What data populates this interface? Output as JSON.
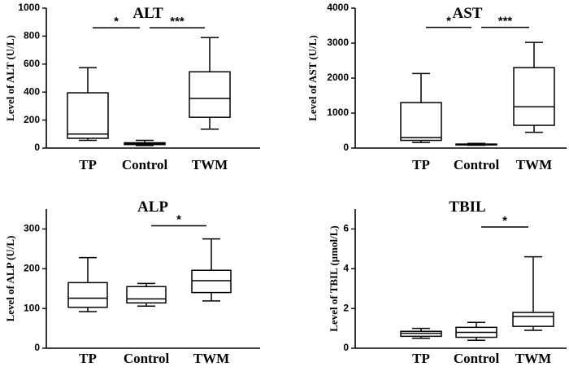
{
  "chart_data": [
    {
      "type": "box",
      "title": "ALT",
      "ylabel": "Level of ALT (U/L)",
      "ylim": [
        0,
        1000
      ],
      "yticks": [
        "0",
        "200",
        "400",
        "600",
        "800",
        "1000"
      ],
      "categories": [
        "TP",
        "Control",
        "TWM"
      ],
      "boxes": [
        {
          "min": 55,
          "q1": 70,
          "median": 100,
          "q3": 395,
          "max": 575
        },
        {
          "min": 18,
          "q1": 25,
          "median": 32,
          "q3": 38,
          "max": 55
        },
        {
          "min": 135,
          "q1": 220,
          "median": 355,
          "q3": 545,
          "max": 790
        }
      ],
      "significance": [
        {
          "from": 0,
          "to": 1,
          "label": "*",
          "y": 860
        },
        {
          "from": 1,
          "to": 2,
          "label": "***",
          "y": 860
        }
      ]
    },
    {
      "type": "box",
      "title": "AST",
      "ylabel": "Level of AST (U/L)",
      "ylim": [
        0,
        4000
      ],
      "yticks": [
        "0",
        "1000",
        "2000",
        "3000",
        "4000"
      ],
      "categories": [
        "TP",
        "Control",
        "TWM"
      ],
      "boxes": [
        {
          "min": 160,
          "q1": 220,
          "median": 300,
          "q3": 1300,
          "max": 2130
        },
        {
          "min": 80,
          "q1": 90,
          "median": 100,
          "q3": 115,
          "max": 135
        },
        {
          "min": 450,
          "q1": 650,
          "median": 1180,
          "q3": 2300,
          "max": 3020
        }
      ],
      "significance": [
        {
          "from": 0,
          "to": 1,
          "label": "*",
          "y": 3450
        },
        {
          "from": 1,
          "to": 2,
          "label": "***",
          "y": 3450
        }
      ]
    },
    {
      "type": "box",
      "title": "ALP",
      "ylabel": "Level of ALP (U/L)",
      "ylim": [
        0,
        350
      ],
      "yticks": [
        "0",
        "100",
        "200",
        "300"
      ],
      "categories": [
        "TP",
        "Control",
        "TWM"
      ],
      "boxes": [
        {
          "min": 92,
          "q1": 103,
          "median": 126,
          "q3": 165,
          "max": 228
        },
        {
          "min": 106,
          "q1": 114,
          "median": 124,
          "q3": 155,
          "max": 163
        },
        {
          "min": 119,
          "q1": 140,
          "median": 170,
          "q3": 196,
          "max": 275
        }
      ],
      "significance": [
        {
          "from": 1,
          "to": 2,
          "label": "*",
          "y": 308
        }
      ]
    },
    {
      "type": "box",
      "title": "TBIL",
      "ylabel": "Level of TBIL (µmol/L)",
      "ylim": [
        0,
        7
      ],
      "yticks": [
        "0",
        "2",
        "4",
        "6"
      ],
      "categories": [
        "TP",
        "Control",
        "TWM"
      ],
      "boxes": [
        {
          "min": 0.5,
          "q1": 0.6,
          "median": 0.75,
          "q3": 0.85,
          "max": 1.0
        },
        {
          "min": 0.4,
          "q1": 0.55,
          "median": 0.8,
          "q3": 1.05,
          "max": 1.3
        },
        {
          "min": 0.9,
          "q1": 1.1,
          "median": 1.6,
          "q3": 1.8,
          "max": 4.6
        }
      ],
      "significance": [
        {
          "from": 1,
          "to": 2,
          "label": "*",
          "y": 6.1
        }
      ]
    }
  ]
}
